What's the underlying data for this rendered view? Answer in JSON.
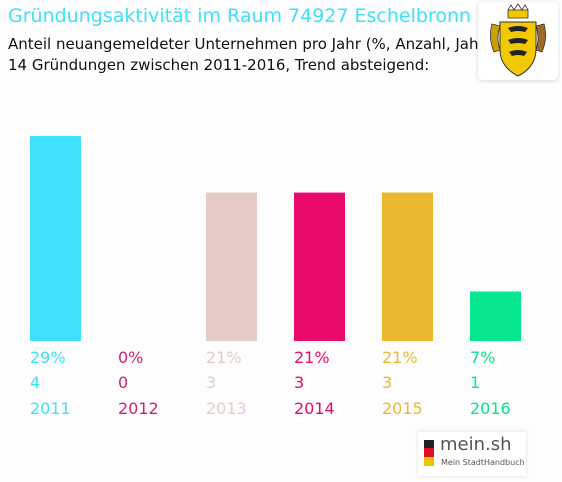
{
  "chart_data": {
    "type": "bar",
    "title": "Gründungsaktivität im Raum 74927 Eschelbronn",
    "subtitle": "Anteil neuangemeldeter Unternehmen pro Jahr (%, Anzahl, Jahr)",
    "subtitle2": "14 Gründungen zwischen 2011-2016, Trend absteigend:",
    "categories": [
      "2011",
      "2012",
      "2013",
      "2014",
      "2015",
      "2016"
    ],
    "values": [
      29,
      0,
      21,
      21,
      21,
      7
    ],
    "counts": [
      4,
      0,
      3,
      3,
      3,
      1
    ],
    "percent_labels": [
      "29%",
      "0%",
      "21%",
      "21%",
      "21%",
      "7%"
    ],
    "colors": [
      "#3ee0fb",
      "#cc2277",
      "#e5cbc6",
      "#ea0a6c",
      "#ebb830",
      "#06e68e"
    ],
    "ylim": [
      0,
      29
    ],
    "xlabel": "",
    "ylabel": "",
    "grid": false,
    "legend": "none"
  },
  "branding": {
    "name": "mein.sh",
    "tagline": "Mein StadtHandbuch",
    "crest_icon": "baden-wuerttemberg-coat-of-arms-icon"
  }
}
